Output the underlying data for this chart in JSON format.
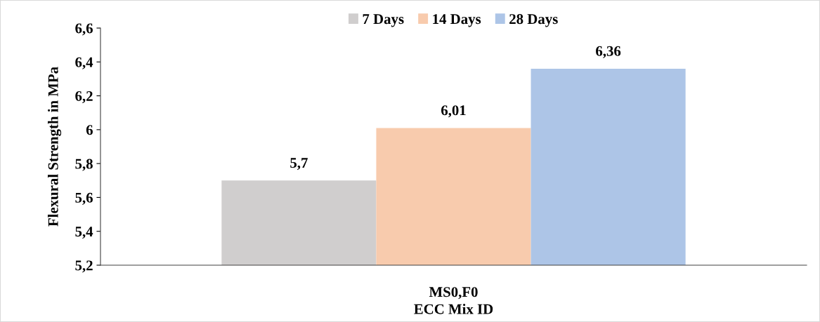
{
  "chart_data": {
    "type": "bar",
    "xlabel": "ECC Mix ID",
    "ylabel": "Flexural Strength in MPa",
    "categories": [
      "MS0,F0"
    ],
    "series": [
      {
        "name": "7 Days",
        "color": "#d0cece",
        "values": [
          5.7
        ],
        "value_labels": [
          "5,7"
        ]
      },
      {
        "name": "14 Days",
        "color": "#f8cbad",
        "values": [
          6.01
        ],
        "value_labels": [
          "6,01"
        ]
      },
      {
        "name": "28 Days",
        "color": "#adc5e7",
        "values": [
          6.36
        ],
        "value_labels": [
          "6,36"
        ]
      }
    ],
    "ylim": [
      5.2,
      6.6
    ],
    "yticks": [
      {
        "value": 5.2,
        "label": "5,2"
      },
      {
        "value": 5.4,
        "label": "5,4"
      },
      {
        "value": 5.6,
        "label": "5,6"
      },
      {
        "value": 5.8,
        "label": "5,8"
      },
      6,
      {
        "value": 6.2,
        "label": "6,2"
      },
      {
        "value": 6.4,
        "label": "6,4"
      },
      {
        "value": 6.6,
        "label": "6,6"
      }
    ],
    "grid": false,
    "legend": "top"
  }
}
